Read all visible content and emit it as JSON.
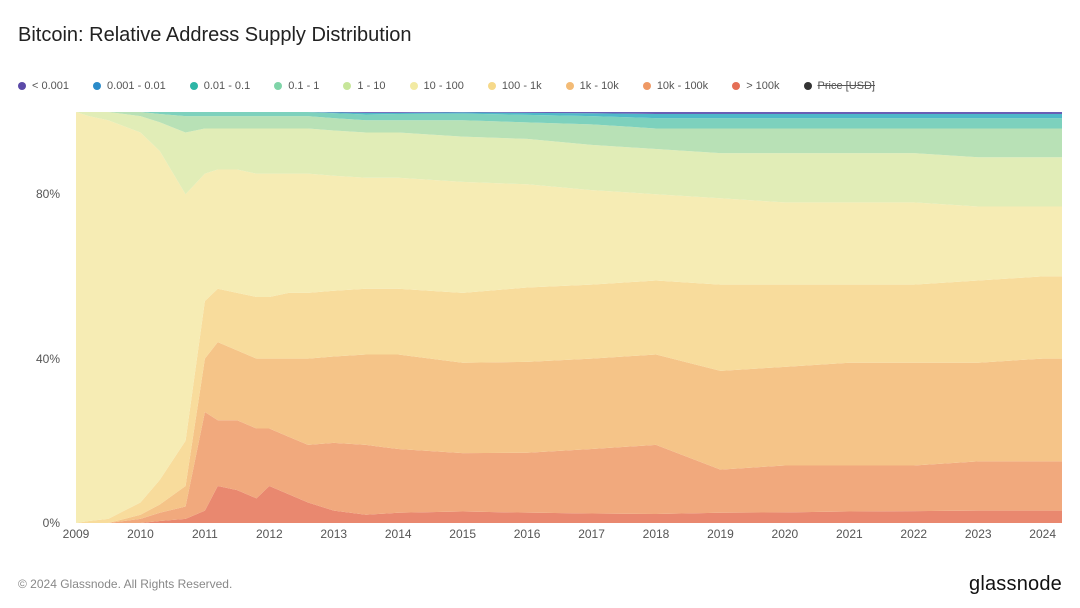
{
  "title": "Bitcoin: Relative Address Supply Distribution",
  "footer_copyright": "© 2024 Glassnode. All Rights Reserved.",
  "footer_brand": "glassnode",
  "chart": {
    "type": "stacked-area",
    "background_color": "#ffffff",
    "title_fontsize": 20,
    "label_fontsize": 12,
    "y_axis": {
      "ticks": [
        0,
        40,
        80
      ],
      "tick_labels": [
        "0%",
        "40%",
        "80%"
      ],
      "min": 0,
      "max": 100
    },
    "x_axis": {
      "years": [
        2009,
        2010,
        2011,
        2012,
        2013,
        2014,
        2015,
        2016,
        2017,
        2018,
        2019,
        2020,
        2021,
        2022,
        2023,
        2024
      ]
    },
    "legend": [
      {
        "label": "< 0.001",
        "color": "#5b4aa8"
      },
      {
        "label": "0.001 - 0.01",
        "color": "#2b8bc9"
      },
      {
        "label": "0.01 - 0.1",
        "color": "#2db6a6"
      },
      {
        "label": "0.1 - 1",
        "color": "#7fd4a8"
      },
      {
        "label": "1 - 10",
        "color": "#c7e69a"
      },
      {
        "label": "10 - 100",
        "color": "#f2eaa3"
      },
      {
        "label": "100 - 1k",
        "color": "#f6d98a"
      },
      {
        "label": "1k - 10k",
        "color": "#f3bb76"
      },
      {
        "label": "10k - 100k",
        "color": "#ef9965"
      },
      {
        "label": "> 100k",
        "color": "#e56f56"
      },
      {
        "label": "Price [USD]",
        "color": "#333333",
        "strike": true
      }
    ],
    "series_order_bottom_to_top": [
      "> 100k",
      "10k - 100k",
      "1k - 10k",
      "100 - 1k",
      "10 - 100",
      "1 - 10",
      "0.1 - 1",
      "0.01 - 0.1",
      "0.001 - 0.01",
      "< 0.001"
    ],
    "series_colors": {
      "> 100k": "#e9886f",
      "10k - 100k": "#f1a97d",
      "1k - 10k": "#f5c488",
      "100 - 1k": "#f8dc9c",
      "10 - 100": "#f6ecb4",
      "1 - 10": "#e1edb7",
      "0.1 - 1": "#b8e1b6",
      "0.01 - 0.1": "#7dd1bd",
      "0.001 - 0.01": "#4fb9c9",
      "< 0.001": "#6a5eb5"
    },
    "time_points": [
      2009.0,
      2009.2,
      2009.5,
      2010.0,
      2010.3,
      2010.7,
      2011.0,
      2011.2,
      2011.5,
      2011.8,
      2012.0,
      2012.3,
      2012.6,
      2013.0,
      2013.5,
      2014.0,
      2015.0,
      2016.0,
      2017.0,
      2018.0,
      2019.0,
      2020.0,
      2021.0,
      2022.0,
      2023.0,
      2024.0,
      2024.3
    ],
    "stacked_values_pct": {
      "> 100k": [
        0,
        0,
        0,
        0,
        0.5,
        1,
        3,
        9,
        8,
        6,
        9,
        7,
        5,
        3,
        2,
        2.5,
        2.8,
        2.5,
        2.3,
        2.2,
        2.5,
        2.6,
        2.8,
        2.9,
        3.0,
        3.0,
        3.0
      ],
      "10k - 100k": [
        0,
        0,
        0,
        1,
        2,
        3,
        24,
        16,
        17,
        17,
        14,
        14,
        14,
        16.5,
        17,
        15.5,
        14.2,
        14.5,
        15.7,
        16.8,
        10.5,
        11.4,
        11.2,
        11.1,
        12.0,
        12.0,
        12.0
      ],
      "1k - 10k": [
        0,
        0,
        0,
        1,
        2,
        5,
        13,
        19,
        17,
        17,
        17,
        19,
        21,
        21,
        22,
        23,
        22,
        22,
        22,
        22,
        24,
        24,
        25,
        25,
        24,
        25,
        25
      ],
      "100 - 1k": [
        0,
        0.5,
        1,
        3,
        6,
        11,
        14,
        13,
        14,
        15,
        15,
        16,
        16,
        16,
        16,
        16,
        17,
        18,
        18,
        18,
        21,
        20,
        19,
        19,
        20,
        20,
        20
      ],
      "10 - 100": [
        100,
        98.5,
        97,
        90,
        80,
        60,
        31,
        29,
        30,
        30,
        30,
        29,
        29,
        28,
        27,
        27,
        27,
        25,
        23,
        21,
        21,
        20,
        20,
        20,
        18,
        17,
        17
      ],
      "1 - 10": [
        0,
        1,
        2,
        4,
        7,
        15,
        11,
        10,
        10,
        11,
        11,
        11,
        11,
        11,
        11,
        11,
        11,
        11,
        11,
        11,
        11,
        12,
        12,
        12,
        12,
        12,
        12
      ],
      "0.1 - 1": [
        0,
        0,
        0,
        1,
        2,
        4,
        3,
        3,
        3,
        3,
        3,
        3,
        3,
        3,
        3,
        3,
        4,
        4,
        5,
        5,
        6,
        6,
        6,
        6,
        7,
        7,
        7
      ],
      "0.01 - 0.1": [
        0,
        0,
        0,
        0,
        0.5,
        1,
        1,
        1,
        1,
        1,
        1,
        1,
        1,
        1.2,
        1.4,
        1.5,
        1.6,
        1.8,
        2.0,
        2.5,
        2.5,
        2.5,
        2.5,
        2.5,
        2.5,
        2.5,
        2.5
      ],
      "0.001 - 0.01": [
        0,
        0,
        0,
        0,
        0,
        0,
        0,
        0,
        0,
        0,
        0,
        0,
        0,
        0.2,
        0.4,
        0.3,
        0.3,
        0.5,
        0.7,
        1.0,
        1.0,
        1.0,
        1.0,
        1.0,
        1.0,
        1.0,
        1.0
      ],
      "< 0.001": [
        0,
        0,
        0,
        0,
        0,
        0,
        0,
        0,
        0,
        0,
        0,
        0,
        0,
        0.1,
        0.2,
        0.2,
        0.1,
        0.2,
        0.3,
        0.5,
        0.5,
        0.5,
        0.5,
        0.5,
        0.5,
        0.5,
        0.5
      ]
    }
  }
}
